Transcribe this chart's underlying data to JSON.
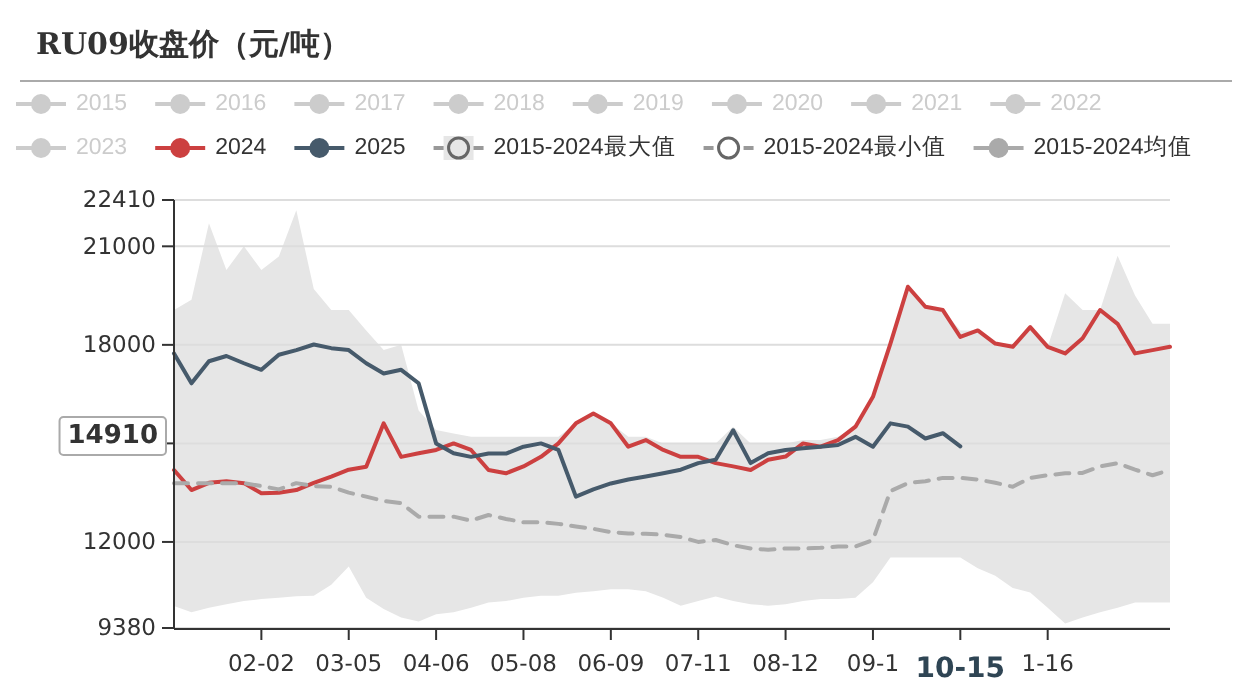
{
  "chart_data": {
    "type": "line",
    "title": "RU09收盘价（元/吨）",
    "categories": [
      null,
      null,
      null,
      null,
      null,
      "02-02",
      null,
      null,
      null,
      null,
      "03-05",
      null,
      null,
      null,
      null,
      "04-06",
      null,
      null,
      null,
      null,
      "05-08",
      null,
      null,
      null,
      null,
      "06-09",
      null,
      null,
      null,
      null,
      "07-11",
      null,
      null,
      null,
      null,
      "08-12",
      null,
      null,
      null,
      null,
      "09-1",
      null,
      null,
      null,
      null,
      "10-15",
      null,
      null,
      null,
      null,
      "1-16",
      null,
      null,
      null,
      null,
      null,
      null,
      null
    ],
    "ylim": [
      9380,
      22410
    ],
    "yticks": [
      9380,
      12000,
      {
        "value": 15000,
        "label": null
      },
      18000,
      21000,
      22410
    ],
    "grid": "y",
    "legend": "top",
    "annotations": [
      "14910"
    ],
    "series": [
      {
        "name": "2015",
        "color": "#cccccc",
        "values": [
          null,
          null,
          null,
          null,
          null,
          null,
          null,
          null,
          null,
          null,
          null,
          null,
          null,
          null,
          null,
          null,
          null,
          null,
          null,
          null,
          null,
          null,
          null,
          null,
          null,
          null,
          null,
          null,
          null,
          null,
          null,
          null,
          null,
          null,
          null,
          null,
          null,
          null,
          null,
          null,
          null,
          null,
          null,
          null,
          null,
          null,
          null,
          null,
          null,
          null,
          null,
          null,
          null,
          null,
          null,
          null,
          null,
          null
        ]
      },
      {
        "name": "2016",
        "color": "#cccccc",
        "values": [
          null,
          null,
          null,
          null,
          null,
          null,
          null,
          null,
          null,
          null,
          null,
          null,
          null,
          null,
          null,
          null,
          null,
          null,
          null,
          null,
          null,
          null,
          null,
          null,
          null,
          null,
          null,
          null,
          null,
          null,
          null,
          null,
          null,
          null,
          null,
          null,
          null,
          null,
          null,
          null,
          null,
          null,
          null,
          null,
          null,
          null,
          null,
          null,
          null,
          null,
          null,
          null,
          null,
          null,
          null,
          null,
          null,
          null
        ]
      },
      {
        "name": "2017",
        "color": "#cccccc",
        "values": [
          null,
          null,
          null,
          null,
          null,
          null,
          null,
          null,
          null,
          null,
          null,
          null,
          null,
          null,
          null,
          null,
          null,
          null,
          null,
          null,
          null,
          null,
          null,
          null,
          null,
          null,
          null,
          null,
          null,
          null,
          null,
          null,
          null,
          null,
          null,
          null,
          null,
          null,
          null,
          null,
          null,
          null,
          null,
          null,
          null,
          null,
          null,
          null,
          null,
          null,
          null,
          null,
          null,
          null,
          null,
          null,
          null,
          null
        ]
      },
      {
        "name": "2018",
        "color": "#cccccc",
        "values": [
          null,
          null,
          null,
          null,
          null,
          null,
          null,
          null,
          null,
          null,
          null,
          null,
          null,
          null,
          null,
          null,
          null,
          null,
          null,
          null,
          null,
          null,
          null,
          null,
          null,
          null,
          null,
          null,
          null,
          null,
          null,
          null,
          null,
          null,
          null,
          null,
          null,
          null,
          null,
          null,
          null,
          null,
          null,
          null,
          null,
          null,
          null,
          null,
          null,
          null,
          null,
          null,
          null,
          null,
          null,
          null,
          null,
          null
        ]
      },
      {
        "name": "2019",
        "color": "#cccccc",
        "values": [
          null,
          null,
          null,
          null,
          null,
          null,
          null,
          null,
          null,
          null,
          null,
          null,
          null,
          null,
          null,
          null,
          null,
          null,
          null,
          null,
          null,
          null,
          null,
          null,
          null,
          null,
          null,
          null,
          null,
          null,
          null,
          null,
          null,
          null,
          null,
          null,
          null,
          null,
          null,
          null,
          null,
          null,
          null,
          null,
          null,
          null,
          null,
          null,
          null,
          null,
          null,
          null,
          null,
          null,
          null,
          null,
          null,
          null
        ]
      },
      {
        "name": "2020",
        "color": "#cccccc",
        "values": [
          null,
          null,
          null,
          null,
          null,
          null,
          null,
          null,
          null,
          null,
          null,
          null,
          null,
          null,
          null,
          null,
          null,
          null,
          null,
          null,
          null,
          null,
          null,
          null,
          null,
          null,
          null,
          null,
          null,
          null,
          null,
          null,
          null,
          null,
          null,
          null,
          null,
          null,
          null,
          null,
          null,
          null,
          null,
          null,
          null,
          null,
          null,
          null,
          null,
          null,
          null,
          null,
          null,
          null,
          null,
          null,
          null,
          null
        ]
      },
      {
        "name": "2021",
        "color": "#cccccc",
        "values": [
          null,
          null,
          null,
          null,
          null,
          null,
          null,
          null,
          null,
          null,
          null,
          null,
          null,
          null,
          null,
          null,
          null,
          null,
          null,
          null,
          null,
          null,
          null,
          null,
          null,
          null,
          null,
          null,
          null,
          null,
          null,
          null,
          null,
          null,
          null,
          null,
          null,
          null,
          null,
          null,
          null,
          null,
          null,
          null,
          null,
          null,
          null,
          null,
          null,
          null,
          null,
          null,
          null,
          null,
          null,
          null,
          null,
          null
        ]
      },
      {
        "name": "2022",
        "color": "#cccccc",
        "values": [
          null,
          null,
          null,
          null,
          null,
          null,
          null,
          null,
          null,
          null,
          null,
          null,
          null,
          null,
          null,
          null,
          null,
          null,
          null,
          null,
          null,
          null,
          null,
          null,
          null,
          null,
          null,
          null,
          null,
          null,
          null,
          null,
          null,
          null,
          null,
          null,
          null,
          null,
          null,
          null,
          null,
          null,
          null,
          null,
          null,
          null,
          null,
          null,
          null,
          null,
          null,
          null,
          null,
          null,
          null,
          null,
          null,
          null
        ]
      },
      {
        "name": "2023",
        "color": "#cccccc",
        "values": [
          null,
          null,
          null,
          null,
          null,
          null,
          null,
          null,
          null,
          null,
          null,
          null,
          null,
          null,
          null,
          null,
          null,
          null,
          null,
          null,
          null,
          null,
          null,
          null,
          null,
          null,
          null,
          null,
          null,
          null,
          null,
          null,
          null,
          null,
          null,
          null,
          null,
          null,
          null,
          null,
          null,
          null,
          null,
          null,
          null,
          null,
          null,
          null,
          null,
          null,
          null,
          null,
          null,
          null,
          null,
          null,
          null,
          null
        ]
      },
      {
        "name": "2024",
        "type": "line",
        "color": "#cc4040",
        "values": [
          14190,
          13580,
          13800,
          13850,
          13790,
          13480,
          13500,
          13580,
          13800,
          13990,
          14200,
          14290,
          15610,
          14590,
          14700,
          14800,
          15000,
          14800,
          14190,
          14090,
          14300,
          14590,
          15000,
          15610,
          15910,
          15610,
          14900,
          15100,
          14800,
          14590,
          14590,
          14400,
          14300,
          14190,
          14500,
          14600,
          15000,
          14900,
          15100,
          15510,
          16420,
          18040,
          19770,
          19160,
          19060,
          18240,
          18440,
          18040,
          17940,
          18540,
          17940,
          17740,
          18200,
          19060,
          18640,
          17740,
          17840,
          17940
        ]
      },
      {
        "name": "2025",
        "type": "line",
        "color": "#465a6b",
        "values": [
          17740,
          16830,
          17500,
          17660,
          17440,
          17240,
          17700,
          17840,
          18010,
          17900,
          17840,
          17440,
          17130,
          17240,
          16830,
          15000,
          14700,
          14590,
          14690,
          14690,
          14900,
          15000,
          14800,
          13380,
          13600,
          13780,
          13900,
          13990,
          14090,
          14200,
          14400,
          14500,
          15400,
          14400,
          14700,
          14800,
          14850,
          14900,
          14950,
          15200,
          14900,
          15610,
          15510,
          15150,
          15310,
          14910,
          null,
          null,
          null,
          null,
          null,
          null,
          null,
          null,
          null,
          null,
          null,
          null
        ]
      },
      {
        "name": "2015-2024最大值",
        "type": "area",
        "color": "#e6e6e6",
        "values": [
          19060,
          19370,
          21700,
          20280,
          21000,
          20280,
          20690,
          22100,
          19700,
          19060,
          19060,
          18440,
          17840,
          18000,
          16000,
          15410,
          15300,
          15200,
          15200,
          15200,
          15200,
          15200,
          15200,
          15610,
          15910,
          15610,
          15200,
          15200,
          15000,
          15000,
          15000,
          15000,
          15510,
          15000,
          15000,
          15000,
          15100,
          15100,
          15200,
          15510,
          16420,
          18040,
          19770,
          19160,
          19060,
          18440,
          18440,
          18040,
          17940,
          18540,
          17940,
          19570,
          19060,
          19060,
          20710,
          19500,
          18640,
          18640
        ]
      },
      {
        "name": "2015-2024最小值",
        "type": "area",
        "color": "#ffffff",
        "values": [
          10050,
          9860,
          10000,
          10100,
          10200,
          10260,
          10300,
          10350,
          10360,
          10700,
          11250,
          10300,
          9960,
          9700,
          9580,
          9800,
          9860,
          10000,
          10160,
          10200,
          10300,
          10360,
          10360,
          10450,
          10500,
          10560,
          10560,
          10500,
          10300,
          10060,
          10200,
          10340,
          10200,
          10100,
          10060,
          10100,
          10200,
          10260,
          10260,
          10300,
          10770,
          11530,
          11530,
          11530,
          11530,
          11530,
          11200,
          10970,
          10600,
          10460,
          10000,
          9520,
          9700,
          9860,
          10000,
          10160,
          10160,
          10160
        ]
      },
      {
        "name": "2015-2024均值",
        "type": "line",
        "line_style": "dashed",
        "color": "#aaaaaa",
        "values": [
          13790,
          13790,
          13790,
          13790,
          13790,
          13700,
          13600,
          13790,
          13700,
          13680,
          13500,
          13380,
          13250,
          13180,
          12770,
          12770,
          12770,
          12650,
          12820,
          12700,
          12600,
          12600,
          12550,
          12470,
          12400,
          12300,
          12260,
          12250,
          12220,
          12150,
          12000,
          12060,
          11900,
          11800,
          11760,
          11800,
          11800,
          11820,
          11860,
          11860,
          12060,
          13550,
          13790,
          13850,
          13950,
          13950,
          13900,
          13800,
          13680,
          13950,
          14030,
          14090,
          14100,
          14300,
          14400,
          14200,
          14030,
          14190
        ]
      }
    ]
  }
}
